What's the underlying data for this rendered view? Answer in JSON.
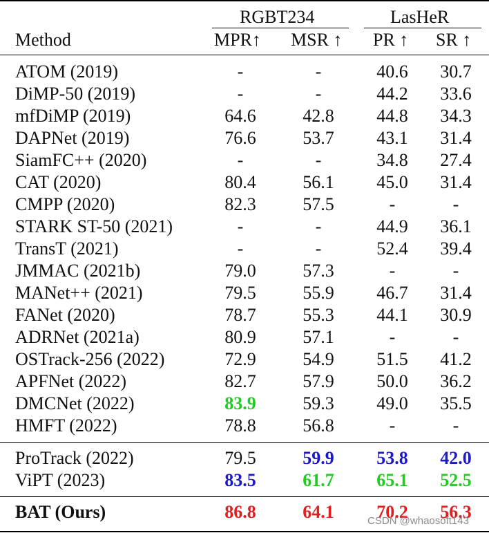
{
  "header": {
    "group1": "RGBT234",
    "group2": "LasHeR",
    "method": "Method",
    "col1": "MPR↑",
    "col2": "MSR ↑",
    "col3": "PR ↑",
    "col4": "SR ↑"
  },
  "colors": {
    "red": "#e02020",
    "green": "#22cc22",
    "blue": "#1a1acc",
    "default": "#111111"
  },
  "rows": [
    {
      "method": "ATOM (2019)",
      "v": [
        {
          "t": "-"
        },
        {
          "t": "-"
        },
        {
          "t": "40.6"
        },
        {
          "t": "30.7"
        }
      ]
    },
    {
      "method": "DiMP-50 (2019)",
      "v": [
        {
          "t": "-"
        },
        {
          "t": "-"
        },
        {
          "t": "44.2"
        },
        {
          "t": "33.6"
        }
      ]
    },
    {
      "method": "mfDiMP (2019)",
      "v": [
        {
          "t": "64.6"
        },
        {
          "t": "42.8"
        },
        {
          "t": "44.8"
        },
        {
          "t": "34.3"
        }
      ]
    },
    {
      "method": "DAPNet (2019)",
      "v": [
        {
          "t": "76.6"
        },
        {
          "t": "53.7"
        },
        {
          "t": "43.1"
        },
        {
          "t": "31.4"
        }
      ]
    },
    {
      "method": "SiamFC++ (2020)",
      "v": [
        {
          "t": "-"
        },
        {
          "t": "-"
        },
        {
          "t": "34.8"
        },
        {
          "t": "27.4"
        }
      ]
    },
    {
      "method": "CAT (2020)",
      "v": [
        {
          "t": "80.4"
        },
        {
          "t": "56.1"
        },
        {
          "t": "45.0"
        },
        {
          "t": "31.4"
        }
      ]
    },
    {
      "method": "CMPP (2020)",
      "v": [
        {
          "t": "82.3"
        },
        {
          "t": "57.5"
        },
        {
          "t": "-"
        },
        {
          "t": "-"
        }
      ]
    },
    {
      "method": "STARK ST-50 (2021)",
      "v": [
        {
          "t": "-"
        },
        {
          "t": "-"
        },
        {
          "t": "44.9"
        },
        {
          "t": "36.1"
        }
      ]
    },
    {
      "method": "TransT (2021)",
      "v": [
        {
          "t": "-"
        },
        {
          "t": "-"
        },
        {
          "t": "52.4"
        },
        {
          "t": "39.4"
        }
      ]
    },
    {
      "method": "JMMAC (2021b)",
      "v": [
        {
          "t": "79.0"
        },
        {
          "t": "57.3"
        },
        {
          "t": "-"
        },
        {
          "t": "-"
        }
      ]
    },
    {
      "method": "MANet++ (2021)",
      "v": [
        {
          "t": "79.5"
        },
        {
          "t": "55.9"
        },
        {
          "t": "46.7"
        },
        {
          "t": "31.4"
        }
      ]
    },
    {
      "method": "FANet (2020)",
      "v": [
        {
          "t": "78.7"
        },
        {
          "t": "55.3"
        },
        {
          "t": "44.1"
        },
        {
          "t": "30.9"
        }
      ]
    },
    {
      "method": "ADRNet (2021a)",
      "v": [
        {
          "t": "80.9"
        },
        {
          "t": "57.1"
        },
        {
          "t": "-"
        },
        {
          "t": "-"
        }
      ]
    },
    {
      "method": "OSTrack-256 (2022)",
      "v": [
        {
          "t": "72.9"
        },
        {
          "t": "54.9"
        },
        {
          "t": "51.5"
        },
        {
          "t": "41.2"
        }
      ]
    },
    {
      "method": "APFNet (2022)",
      "v": [
        {
          "t": "82.7"
        },
        {
          "t": "57.9"
        },
        {
          "t": "50.0"
        },
        {
          "t": "36.2"
        }
      ]
    },
    {
      "method": "DMCNet (2022)",
      "v": [
        {
          "t": "83.9",
          "c": "green",
          "b": true
        },
        {
          "t": "59.3"
        },
        {
          "t": "49.0"
        },
        {
          "t": "35.5"
        }
      ]
    },
    {
      "method": "HMFT (2022)",
      "v": [
        {
          "t": "78.8"
        },
        {
          "t": "56.8"
        },
        {
          "t": "-"
        },
        {
          "t": "-"
        }
      ]
    },
    {
      "method": "ProTrack (2022)",
      "v": [
        {
          "t": "79.5"
        },
        {
          "t": "59.9",
          "c": "blue",
          "b": true
        },
        {
          "t": "53.8",
          "c": "blue",
          "b": true
        },
        {
          "t": "42.0",
          "c": "blue",
          "b": true
        }
      ]
    },
    {
      "method": "ViPT (2023)",
      "v": [
        {
          "t": "83.5",
          "c": "blue",
          "b": true
        },
        {
          "t": "61.7",
          "c": "green",
          "b": true
        },
        {
          "t": "65.1",
          "c": "green",
          "b": true
        },
        {
          "t": "52.5",
          "c": "green",
          "b": true
        }
      ]
    },
    {
      "method": "BAT (Ours)",
      "mb": true,
      "v": [
        {
          "t": "86.8",
          "c": "red",
          "b": true
        },
        {
          "t": "64.1",
          "c": "red",
          "b": true
        },
        {
          "t": "70.2",
          "c": "red",
          "b": true
        },
        {
          "t": "56.3",
          "c": "red",
          "b": true
        }
      ]
    }
  ],
  "watermark": "CSDN @whaosoft143"
}
